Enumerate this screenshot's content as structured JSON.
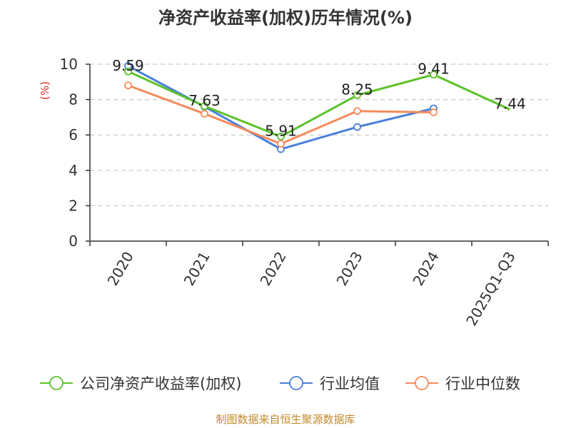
{
  "chart_data": {
    "type": "line",
    "title": "净资产收益率(加权)历年情况(%)",
    "ylabel": "(%)",
    "ylim": [
      0,
      10
    ],
    "yticks": [
      0,
      2,
      4,
      6,
      8,
      10
    ],
    "grid": true,
    "legend_position": "bottom",
    "categories": [
      "2020",
      "2021",
      "2022",
      "2023",
      "2024",
      "2025Q1-Q3"
    ],
    "series": [
      {
        "name": "公司净资产收益率(加权)",
        "color": "#5dc229",
        "values": [
          9.59,
          7.63,
          5.91,
          8.25,
          9.41,
          7.44
        ],
        "labels": [
          "9.59",
          "7.63",
          "5.91",
          "8.25",
          "9.41",
          "7.44"
        ]
      },
      {
        "name": "行业均值",
        "color": "#4a7fdc",
        "values": [
          9.9,
          7.6,
          5.2,
          6.45,
          7.5,
          null
        ]
      },
      {
        "name": "行业中位数",
        "color": "#f58b5b",
        "values": [
          8.8,
          7.2,
          5.5,
          7.35,
          7.28,
          null
        ]
      }
    ]
  },
  "source_text": "制图数据来自恒生聚源数据库"
}
